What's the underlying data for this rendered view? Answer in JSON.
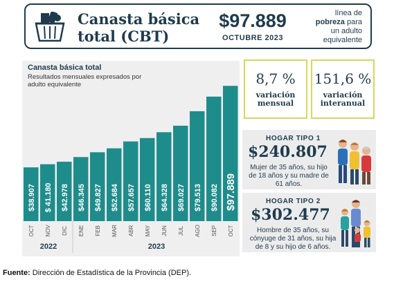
{
  "header": {
    "title_line1": "Canasta básica",
    "title_line2": "total (CBT)",
    "value": "$97.889",
    "month": "OCTUBRE 2023",
    "note_prefix": "línea de",
    "note_bold": "pobreza",
    "note_suffix1": "para",
    "note_suffix2": "un adulto",
    "note_suffix3": "equivalente"
  },
  "stats": {
    "monthly_value": "8,7 %",
    "monthly_label1": "variación",
    "monthly_label2": "mensual",
    "yearly_value": "151,6 %",
    "yearly_label1": "variación",
    "yearly_label2": "interanual"
  },
  "hogar1": {
    "tag": "HOGAR TIPO 1",
    "value": "$240.807",
    "desc1": "Mujer de 35 años, su hijo",
    "desc2": "de 18 años y su madre de",
    "desc3": "61 años."
  },
  "hogar2": {
    "tag": "HOGAR TIPO 2",
    "value": "$302.477",
    "desc1": "Hombre de 35 años, su",
    "desc2": "cónyuge de 31 años, su hija",
    "desc3": "de 8 y su hijo de 6 años."
  },
  "source": {
    "label": "Fuente:",
    "text": " Dirección de Estadística de la Provincia (DEP)."
  },
  "chart_data": {
    "type": "bar",
    "title": "Canasta básica total",
    "subtitle": "Resultados mensuales expresados por adulto equivalente",
    "categories": [
      "OCT",
      "NOV",
      "DIC",
      "ENE",
      "FEB",
      "MAR",
      "ABR",
      "MAY",
      "JUN",
      "JUL",
      "AGO",
      "SEP",
      "OCT"
    ],
    "values": [
      38907,
      41180,
      42978,
      46345,
      49827,
      52684,
      57657,
      60110,
      64328,
      69027,
      79513,
      90082,
      97889
    ],
    "value_labels": [
      "$38.907",
      "$ 41.180",
      "$42.978",
      "$46.345",
      "$49.827",
      "$52.684",
      "$57.657",
      "$60.110",
      "$64.328",
      "$69.027",
      "$79.513",
      "$90.082",
      "$97.889"
    ],
    "year_labels": [
      "2022",
      "2023"
    ],
    "bar_color": "#1f8c8c",
    "highlight_color": "#1f8c8c"
  }
}
